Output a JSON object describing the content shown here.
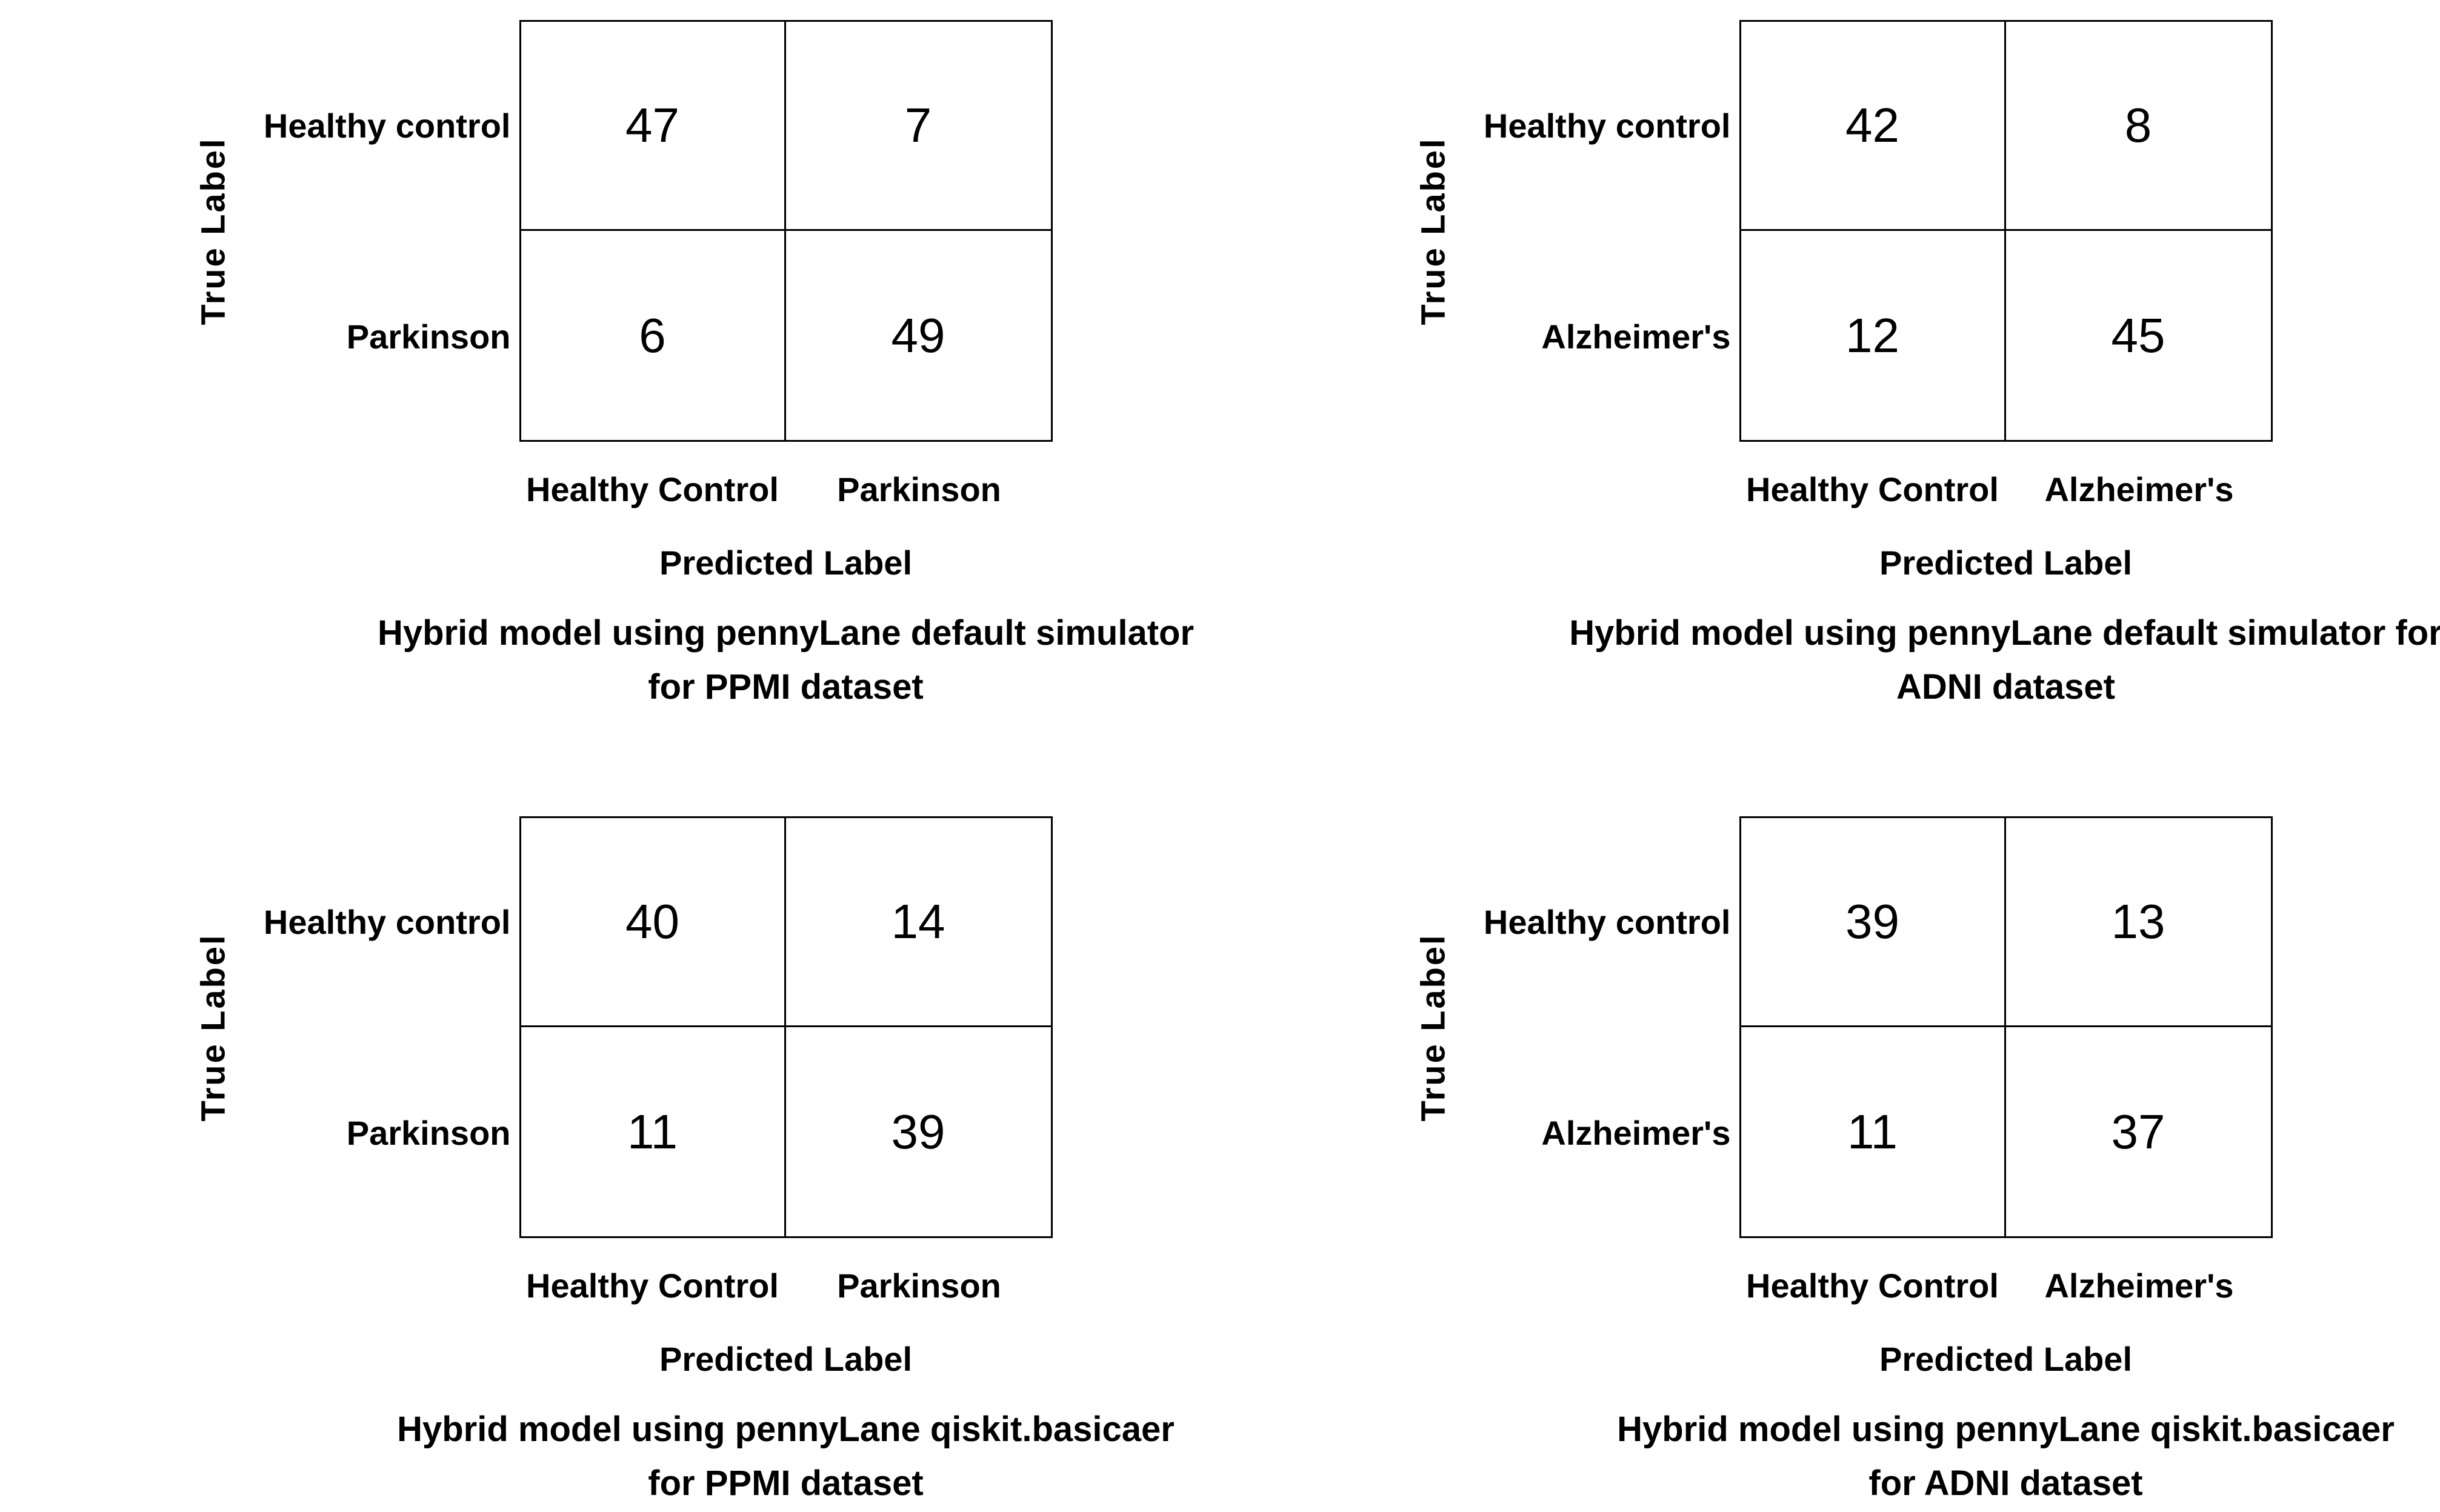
{
  "page": {
    "background_color": "#ffffff",
    "text_color": "#000000"
  },
  "panels": [
    {
      "position": "top-left",
      "y_axis_label": "True Label",
      "x_axis_label": "Predicted Label",
      "row_labels": [
        "Healthy control",
        "Parkinson"
      ],
      "col_labels": [
        "Healthy Control",
        "Parkinson"
      ],
      "matrix": [
        [
          47,
          7
        ],
        [
          6,
          49
        ]
      ],
      "caption_line1": "Hybrid model using pennyLane default simulator",
      "caption_line2": "for PPMI dataset"
    },
    {
      "position": "top-right",
      "y_axis_label": "True Label",
      "x_axis_label": "Predicted Label",
      "row_labels": [
        "Healthy control",
        "Alzheimer's"
      ],
      "col_labels": [
        "Healthy Control",
        "Alzheimer's"
      ],
      "matrix": [
        [
          42,
          8
        ],
        [
          12,
          45
        ]
      ],
      "caption_line1": "Hybrid model using pennyLane default simulator for",
      "caption_line2": "ADNI dataset"
    },
    {
      "position": "bottom-left",
      "y_axis_label": "True Label",
      "x_axis_label": "Predicted Label",
      "row_labels": [
        "Healthy control",
        "Parkinson"
      ],
      "col_labels": [
        "Healthy Control",
        "Parkinson"
      ],
      "matrix": [
        [
          40,
          14
        ],
        [
          11,
          39
        ]
      ],
      "caption_line1": "Hybrid model using pennyLane qiskit.basicaer",
      "caption_line2": "for PPMI dataset"
    },
    {
      "position": "bottom-right",
      "y_axis_label": "True Label",
      "x_axis_label": "Predicted Label",
      "row_labels": [
        "Healthy control",
        "Alzheimer's"
      ],
      "col_labels": [
        "Healthy Control",
        "Alzheimer's"
      ],
      "matrix": [
        [
          39,
          13
        ],
        [
          11,
          37
        ]
      ],
      "caption_line1": "Hybrid model using pennyLane qiskit.basicaer",
      "caption_line2": "for ADNI dataset"
    }
  ],
  "chart_data": [
    {
      "type": "heatmap",
      "title": "Hybrid model using pennyLane default simulator for PPMI dataset",
      "xlabel": "Predicted Label",
      "ylabel": "True Label",
      "x_categories": [
        "Healthy Control",
        "Parkinson"
      ],
      "y_categories": [
        "Healthy control",
        "Parkinson"
      ],
      "values": [
        [
          47,
          7
        ],
        [
          6,
          49
        ]
      ],
      "grid": true,
      "legend": false
    },
    {
      "type": "heatmap",
      "title": "Hybrid model using pennyLane default simulator for ADNI dataset",
      "xlabel": "Predicted Label",
      "ylabel": "True Label",
      "x_categories": [
        "Healthy Control",
        "Alzheimer's"
      ],
      "y_categories": [
        "Healthy control",
        "Alzheimer's"
      ],
      "values": [
        [
          42,
          8
        ],
        [
          12,
          45
        ]
      ],
      "grid": true,
      "legend": false
    },
    {
      "type": "heatmap",
      "title": "Hybrid model using pennyLane qiskit.basicaer for PPMI dataset",
      "xlabel": "Predicted Label",
      "ylabel": "True Label",
      "x_categories": [
        "Healthy Control",
        "Parkinson"
      ],
      "y_categories": [
        "Healthy control",
        "Parkinson"
      ],
      "values": [
        [
          40,
          14
        ],
        [
          11,
          39
        ]
      ],
      "grid": true,
      "legend": false
    },
    {
      "type": "heatmap",
      "title": "Hybrid model using pennyLane qiskit.basicaer for ADNI dataset",
      "xlabel": "Predicted Label",
      "ylabel": "True Label",
      "x_categories": [
        "Healthy Control",
        "Alzheimer's"
      ],
      "y_categories": [
        "Healthy control",
        "Alzheimer's"
      ],
      "values": [
        [
          39,
          13
        ],
        [
          11,
          37
        ]
      ],
      "grid": true,
      "legend": false
    }
  ]
}
